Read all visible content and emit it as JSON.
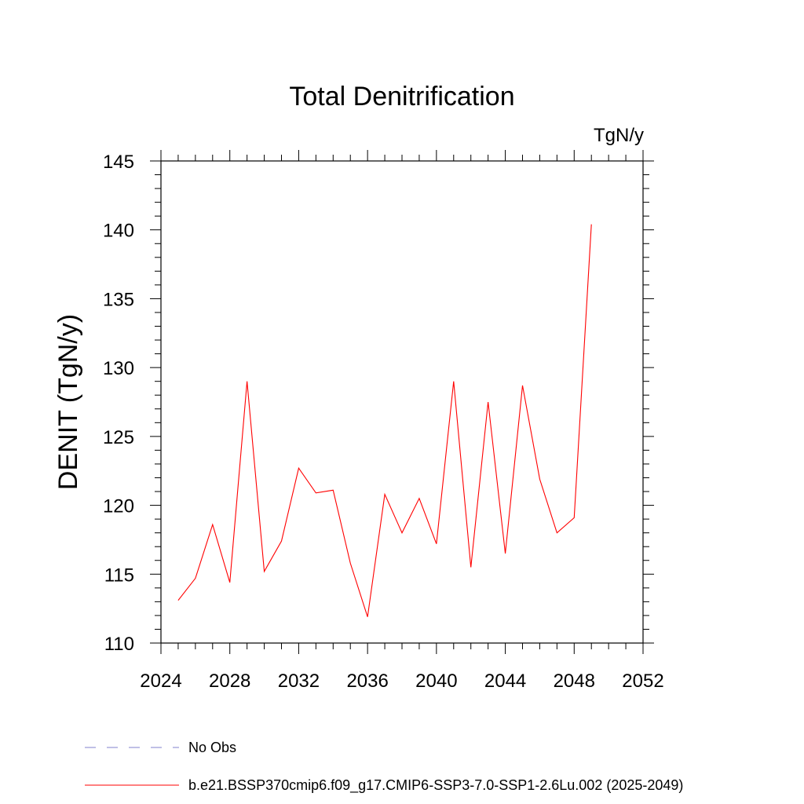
{
  "chart_data": {
    "type": "line",
    "title": "Total Denitrification",
    "units_label": "TgN/y",
    "ylabel": "DENIT  (TgN/y)",
    "xlabel": "",
    "xlim": [
      2024,
      2052
    ],
    "ylim": [
      110,
      145
    ],
    "x_ticks": [
      2024,
      2028,
      2032,
      2036,
      2040,
      2044,
      2048,
      2052
    ],
    "y_ticks": [
      110,
      115,
      120,
      125,
      130,
      135,
      140,
      145
    ],
    "x_minor_step": 1,
    "y_minor_step": 1,
    "grid": false,
    "legend_position": "bottom",
    "series": [
      {
        "name": "b.e21.BSSP370cmip6.f09_g17.CMIP6-SSP3-7.0-SSP1-2.6Lu.002 (2025-2049)",
        "color": "#ff0000",
        "style": "solid",
        "x": [
          2025,
          2026,
          2027,
          2028,
          2029,
          2030,
          2031,
          2032,
          2033,
          2034,
          2035,
          2036,
          2037,
          2038,
          2039,
          2040,
          2041,
          2042,
          2043,
          2044,
          2045,
          2046,
          2047,
          2048,
          2049
        ],
        "y": [
          113.1,
          114.7,
          118.6,
          114.4,
          129.0,
          115.2,
          117.4,
          122.7,
          120.9,
          121.1,
          115.8,
          111.9,
          120.8,
          118.0,
          120.5,
          117.2,
          129.0,
          115.5,
          127.5,
          116.5,
          128.7,
          121.9,
          118.0,
          119.1,
          140.4
        ]
      }
    ],
    "legend": [
      {
        "label": "No Obs",
        "color": "#8080cc",
        "style": "dashed"
      },
      {
        "label": "b.e21.BSSP370cmip6.f09_g17.CMIP6-SSP3-7.0-SSP1-2.6Lu.002 (2025-2049)",
        "color": "#ff0000",
        "style": "solid"
      }
    ]
  }
}
